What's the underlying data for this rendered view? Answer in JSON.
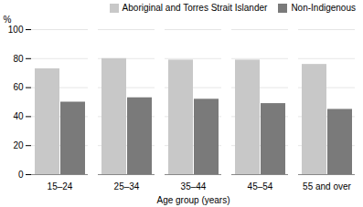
{
  "chart_data": {
    "type": "bar",
    "categories": [
      "15–24",
      "25–34",
      "35–44",
      "45–54",
      "55 and over"
    ],
    "series": [
      {
        "name": "Aboriginal and Torres Strait Islander",
        "color": "#c8c8c8",
        "values": [
          73,
          80,
          79,
          79,
          76
        ]
      },
      {
        "name": "Non-Indigenous",
        "color": "#7a7a7a",
        "values": [
          50,
          53,
          52,
          49,
          45
        ]
      }
    ],
    "xlabel": "Age group (years)",
    "ylabel": "%",
    "ylim": [
      0,
      100
    ],
    "yticks": [
      0,
      20,
      40,
      60,
      80,
      100
    ],
    "grid": true,
    "legend": "upper right"
  }
}
